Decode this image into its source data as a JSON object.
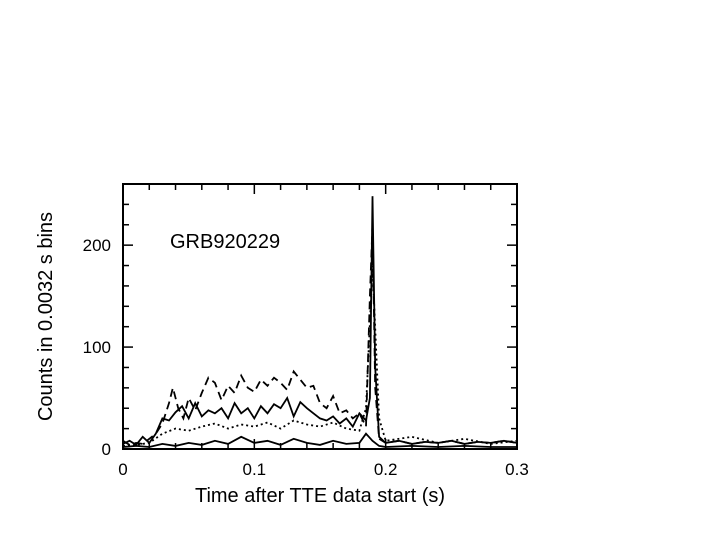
{
  "chart_data": {
    "type": "line",
    "title": "",
    "annotation": "GRB920229",
    "xlabel": "Time after TTE data start (s)",
    "ylabel": "Counts in 0.0032 s bins",
    "xlim": [
      0,
      0.3
    ],
    "ylim": [
      0,
      260
    ],
    "xticks": [
      {
        "value": 0,
        "label": "0"
      },
      {
        "value": 0.1,
        "label": "0.1"
      },
      {
        "value": 0.2,
        "label": "0.2"
      },
      {
        "value": 0.3,
        "label": "0.3"
      }
    ],
    "yticks": [
      {
        "value": 0,
        "label": "0"
      },
      {
        "value": 100,
        "label": "100"
      },
      {
        "value": 200,
        "label": "200"
      }
    ],
    "grid": false,
    "series": [
      {
        "style": "dashed",
        "x": [
          0,
          0.005,
          0.01,
          0.015,
          0.02,
          0.025,
          0.03,
          0.035,
          0.038,
          0.042,
          0.046,
          0.05,
          0.055,
          0.06,
          0.065,
          0.07,
          0.075,
          0.08,
          0.085,
          0.09,
          0.095,
          0.1,
          0.105,
          0.11,
          0.115,
          0.12,
          0.125,
          0.13,
          0.135,
          0.14,
          0.145,
          0.15,
          0.155,
          0.16,
          0.165,
          0.17,
          0.175,
          0.18,
          0.185,
          0.188,
          0.19,
          0.192,
          0.195,
          0.2,
          0.21,
          0.22,
          0.23,
          0.24,
          0.25,
          0.26,
          0.27,
          0.28,
          0.29,
          0.3
        ],
        "y": [
          8,
          4,
          6,
          5,
          10,
          15,
          25,
          45,
          60,
          40,
          30,
          50,
          38,
          55,
          70,
          65,
          48,
          62,
          55,
          72,
          60,
          56,
          68,
          62,
          70,
          65,
          58,
          76,
          68,
          60,
          62,
          45,
          40,
          52,
          35,
          38,
          30,
          35,
          22,
          150,
          220,
          60,
          10,
          6,
          8,
          5,
          7,
          6,
          8,
          5,
          7,
          6,
          8,
          6
        ]
      },
      {
        "style": "solid",
        "x": [
          0,
          0.005,
          0.01,
          0.015,
          0.02,
          0.025,
          0.03,
          0.035,
          0.04,
          0.045,
          0.05,
          0.055,
          0.06,
          0.065,
          0.07,
          0.075,
          0.08,
          0.085,
          0.09,
          0.095,
          0.1,
          0.105,
          0.11,
          0.115,
          0.12,
          0.125,
          0.13,
          0.135,
          0.14,
          0.145,
          0.15,
          0.155,
          0.16,
          0.165,
          0.17,
          0.175,
          0.18,
          0.185,
          0.188,
          0.19,
          0.192,
          0.195,
          0.2,
          0.21,
          0.22,
          0.23,
          0.24,
          0.25,
          0.26,
          0.27,
          0.28,
          0.29,
          0.3
        ],
        "y": [
          5,
          8,
          4,
          12,
          6,
          15,
          30,
          28,
          36,
          42,
          30,
          45,
          32,
          38,
          35,
          40,
          30,
          45,
          35,
          40,
          30,
          42,
          35,
          44,
          40,
          50,
          32,
          46,
          40,
          35,
          30,
          28,
          32,
          25,
          30,
          22,
          35,
          28,
          50,
          248,
          80,
          12,
          6,
          8,
          5,
          7,
          6,
          8,
          5,
          7,
          6,
          8,
          6
        ]
      },
      {
        "style": "dotted",
        "x": [
          0,
          0.01,
          0.02,
          0.03,
          0.04,
          0.05,
          0.06,
          0.07,
          0.08,
          0.09,
          0.1,
          0.11,
          0.12,
          0.13,
          0.14,
          0.15,
          0.16,
          0.17,
          0.18,
          0.185,
          0.19,
          0.195,
          0.2,
          0.22,
          0.24,
          0.26,
          0.28,
          0.3
        ],
        "y": [
          3,
          4,
          6,
          15,
          20,
          18,
          22,
          25,
          20,
          24,
          22,
          26,
          20,
          28,
          24,
          22,
          26,
          20,
          18,
          40,
          180,
          30,
          8,
          12,
          6,
          10,
          5,
          8
        ]
      },
      {
        "style": "solid",
        "x": [
          0,
          0.01,
          0.02,
          0.03,
          0.04,
          0.05,
          0.06,
          0.07,
          0.08,
          0.09,
          0.1,
          0.11,
          0.12,
          0.13,
          0.14,
          0.15,
          0.16,
          0.17,
          0.18,
          0.185,
          0.19,
          0.195,
          0.2,
          0.22,
          0.24,
          0.26,
          0.28,
          0.3
        ],
        "y": [
          2,
          3,
          2,
          5,
          3,
          6,
          4,
          8,
          5,
          12,
          6,
          8,
          4,
          10,
          6,
          4,
          8,
          5,
          6,
          15,
          8,
          3,
          2,
          3,
          2,
          3,
          2,
          2
        ]
      }
    ]
  }
}
